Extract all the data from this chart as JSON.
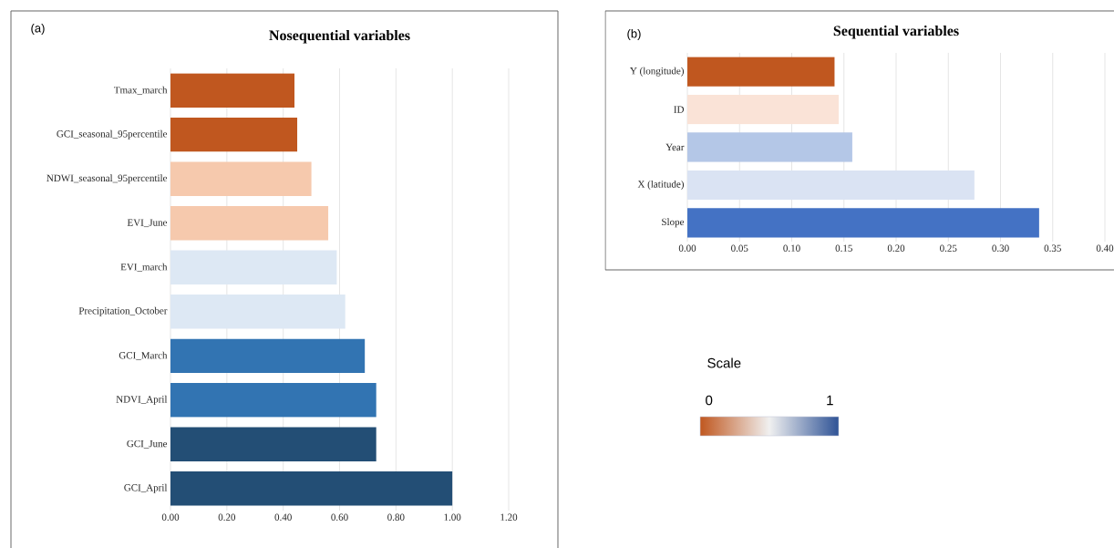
{
  "chart_data": [
    {
      "type": "bar",
      "orientation": "horizontal",
      "title": "Nosequential variables",
      "annotations": [
        "(a)"
      ],
      "categories": [
        "Tmax_march",
        "GCI_seasonal_95percentile",
        "NDWI_seasonal_95percentile",
        "EVI_June",
        "EVI_march",
        "Precipitation_October",
        "GCI_March",
        "NDVI_April",
        "GCI_June",
        "GCI_April"
      ],
      "values": [
        0.44,
        0.45,
        0.5,
        0.56,
        0.59,
        0.62,
        0.69,
        0.73,
        0.73,
        1.0
      ],
      "colors": [
        "#c0571f",
        "#c0571f",
        "#f6c9ad",
        "#f6c9ad",
        "#dde8f4",
        "#dde8f4",
        "#3274b2",
        "#3274b2",
        "#234e75",
        "#234e75"
      ],
      "xlim": [
        0,
        1.2
      ],
      "xticks": [
        {
          "value": 0,
          "label": "0.00"
        },
        {
          "value": 0.2,
          "label": "0.20"
        },
        {
          "value": 0.4,
          "label": "0.40"
        },
        {
          "value": 0.6,
          "label": "0.60"
        },
        {
          "value": 0.8,
          "label": "0.80"
        },
        {
          "value": 1.0,
          "label": "1.00"
        },
        {
          "value": 1.2,
          "label": "1.20"
        }
      ],
      "grid": "x"
    },
    {
      "type": "bar",
      "orientation": "horizontal",
      "title": "Sequential variables",
      "annotations": [
        "(b)"
      ],
      "categories": [
        "Y (longitude)",
        "ID",
        "Year",
        "X (latitude)",
        "Slope"
      ],
      "values": [
        0.141,
        0.145,
        0.158,
        0.275,
        0.337
      ],
      "colors": [
        "#c0571f",
        "#fae3d7",
        "#b4c7e7",
        "#dae3f3",
        "#4472c4"
      ],
      "xlim": [
        0,
        0.4
      ],
      "xticks": [
        {
          "value": 0,
          "label": "0.00"
        },
        {
          "value": 0.05,
          "label": "0.05"
        },
        {
          "value": 0.1,
          "label": "0.10"
        },
        {
          "value": 0.15,
          "label": "0.15"
        },
        {
          "value": 0.2,
          "label": "0.20"
        },
        {
          "value": 0.25,
          "label": "0.25"
        },
        {
          "value": 0.3,
          "label": "0.30"
        },
        {
          "value": 0.35,
          "label": "0.35"
        },
        {
          "value": 0.4,
          "label": "0.40"
        }
      ],
      "grid": "x"
    },
    {
      "type": "other",
      "title": "Scale",
      "annotations": [
        "0",
        "1"
      ]
    }
  ]
}
